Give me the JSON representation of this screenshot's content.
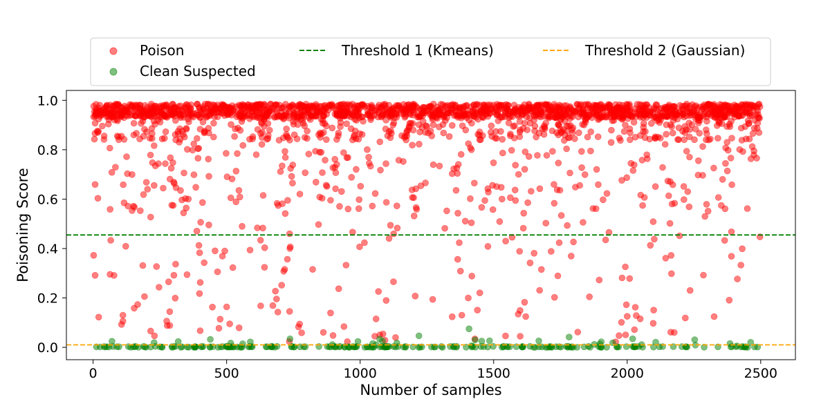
{
  "chart_data": {
    "type": "scatter",
    "title": "",
    "xlabel": "Number of samples",
    "ylabel": "Poisoning Score",
    "xlim": [
      -100,
      2630
    ],
    "ylim": [
      -0.05,
      1.04
    ],
    "xticks": [
      0,
      500,
      1000,
      1500,
      2000,
      2500
    ],
    "yticks": [
      0.0,
      0.2,
      0.4,
      0.6,
      0.8,
      1.0
    ],
    "grid": false,
    "legend_placement": "top-center",
    "series": [
      {
        "name": "Poison",
        "color": "#ff0000",
        "marker": "circle",
        "approx_point_count": 2250,
        "x_range": [
          0,
          2499
        ],
        "distribution": "dense band 0.85-0.99 with scattered points 0.0-0.85"
      },
      {
        "name": "Clean Suspected",
        "color": "#008000",
        "marker": "circle",
        "approx_point_count": 250,
        "x_range": [
          0,
          2499
        ],
        "distribution": "dense band near 0.0, few points up to 0.11"
      }
    ],
    "thresholds": [
      {
        "name": "Threshold 1 (Kmeans)",
        "value": 0.455,
        "color": "#008000",
        "style": "dashed"
      },
      {
        "name": "Threshold 2 (Gaussian)",
        "value": 0.01,
        "color": "#ffa500",
        "style": "dashed"
      }
    ]
  }
}
